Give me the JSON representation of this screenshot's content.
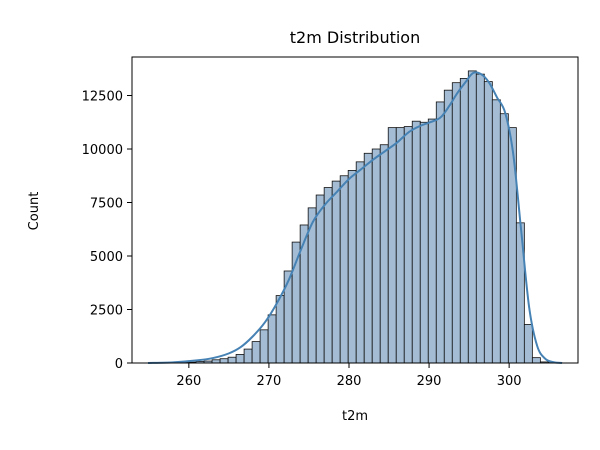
{
  "chart_data": {
    "type": "bar",
    "title": "t2m Distribution",
    "xlabel": "t2m",
    "ylabel": "Count",
    "xlim": [
      252.9,
      308.6
    ],
    "ylim": [
      0,
      14300
    ],
    "x_ticks": [
      "260",
      "270",
      "280",
      "290",
      "300"
    ],
    "y_ticks": [
      "0",
      "2500",
      "5000",
      "7500",
      "10000",
      "12500"
    ],
    "x_tick_values": [
      260,
      270,
      280,
      290,
      300
    ],
    "y_tick_values": [
      0,
      2500,
      5000,
      7500,
      10000,
      12500
    ],
    "bin_edges": [
      254.9,
      255.9,
      256.9,
      257.9,
      258.9,
      259.9,
      260.9,
      261.9,
      262.9,
      263.9,
      264.9,
      265.9,
      266.9,
      267.9,
      268.9,
      269.9,
      270.9,
      271.9,
      272.9,
      273.9,
      274.9,
      275.9,
      276.9,
      277.9,
      278.9,
      279.9,
      280.9,
      281.9,
      282.9,
      283.9,
      284.9,
      285.9,
      286.9,
      287.9,
      288.9,
      289.9,
      290.9,
      291.9,
      292.9,
      293.9,
      294.9,
      295.9,
      296.9,
      297.9,
      298.9,
      299.9,
      300.9,
      301.9,
      302.9,
      303.9,
      304.9,
      305.9,
      306.6
    ],
    "counts": [
      0,
      0,
      10,
      20,
      30,
      40,
      70,
      90,
      150,
      200,
      270,
      400,
      650,
      1000,
      1550,
      2250,
      3150,
      4300,
      5650,
      6450,
      7250,
      7850,
      8200,
      8500,
      8750,
      9000,
      9400,
      9800,
      10000,
      10200,
      11000,
      11000,
      11050,
      11300,
      11250,
      11400,
      12200,
      12750,
      13100,
      13300,
      13650,
      13500,
      13150,
      12300,
      11650,
      11000,
      6550,
      1800,
      250,
      50,
      20,
      10
    ],
    "kde": {
      "x": [
        254.9,
        258,
        261,
        263,
        265,
        266.5,
        268,
        269.5,
        271,
        272.5,
        274,
        275.5,
        277,
        278.5,
        280,
        281.5,
        283,
        284.5,
        286,
        287.5,
        289,
        290.5,
        291.5,
        292.5,
        293.5,
        294.5,
        295.5,
        296.5,
        297.5,
        298.5,
        299.5,
        300.5,
        301.5,
        302.5,
        303.5,
        304.5,
        305.5,
        306.6
      ],
      "y": [
        0,
        30,
        120,
        230,
        450,
        750,
        1250,
        1900,
        2800,
        3900,
        5300,
        6600,
        7400,
        8000,
        8600,
        9050,
        9500,
        9900,
        10300,
        10800,
        11100,
        11300,
        11500,
        12000,
        12600,
        13100,
        13550,
        13500,
        13100,
        12400,
        11700,
        9800,
        6200,
        2600,
        800,
        200,
        40,
        0
      ]
    },
    "colors": {
      "bar_fill": "#a4bdd5",
      "bar_edge": "#111111",
      "kde_line": "#4682b4"
    },
    "grid": false,
    "legend": "none"
  }
}
